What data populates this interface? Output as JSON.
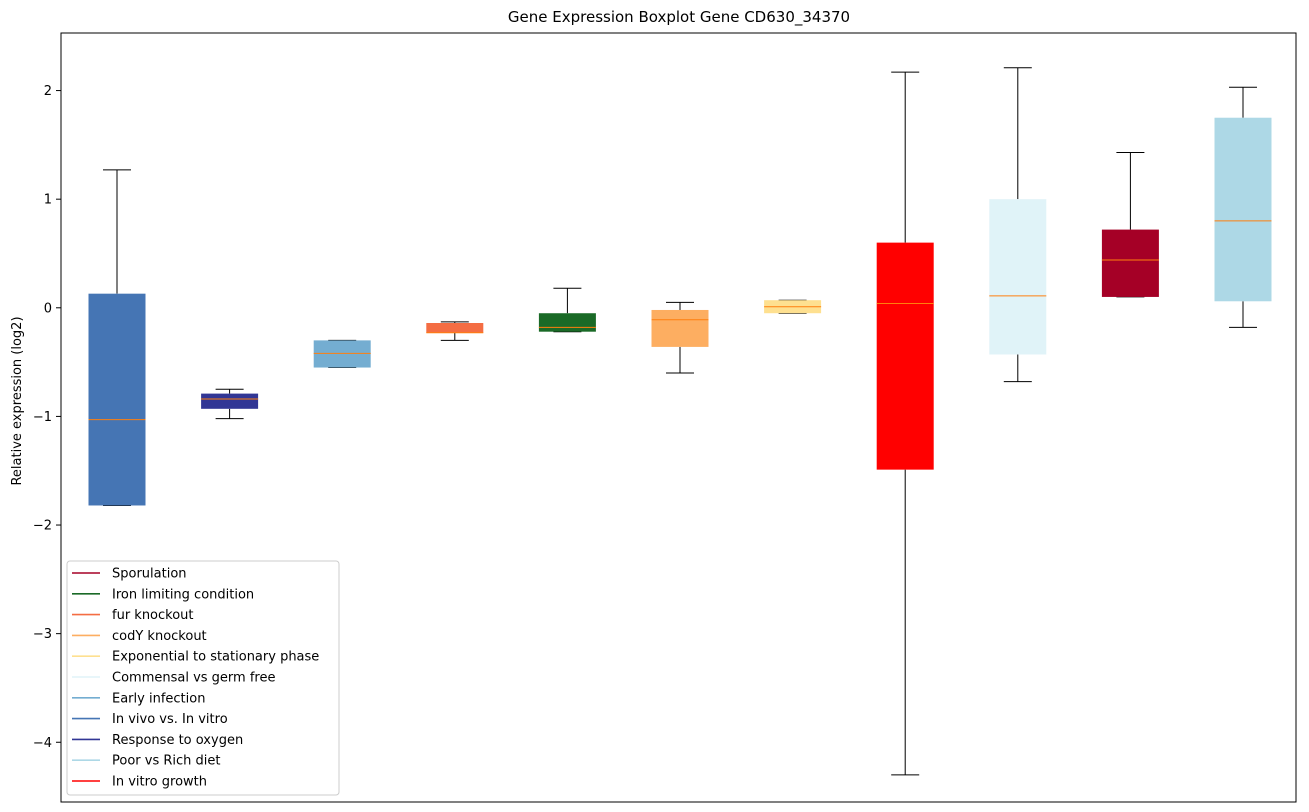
{
  "chart_data": {
    "type": "boxplot",
    "title": "Gene Expression Boxplot Gene CD630_34370",
    "xlabel": "",
    "ylabel": "Relative expression (log2)",
    "ylim": [
      -4.55,
      2.53
    ],
    "yticks": [
      -4,
      -3,
      -2,
      -1,
      0,
      1,
      2
    ],
    "ytick_labels": [
      "−4",
      "−3",
      "−2",
      "−1",
      "0",
      "1",
      "2"
    ],
    "median_color": "#ff7f0e",
    "whisker_color": "#000000",
    "legend_position": "lower-left",
    "boxes": [
      {
        "condition": "In vivo vs. In vitro",
        "color": "#4575b4",
        "whisker_low": -1.82,
        "q1": -1.82,
        "median": -1.03,
        "q3": 0.13,
        "whisker_high": 1.27
      },
      {
        "condition": "Response to oxygen",
        "color": "#313695",
        "whisker_low": -1.02,
        "q1": -0.93,
        "median": -0.84,
        "q3": -0.79,
        "whisker_high": -0.75
      },
      {
        "condition": "Early infection",
        "color": "#74add1",
        "whisker_low": -0.55,
        "q1": -0.55,
        "median": -0.42,
        "q3": -0.3,
        "whisker_high": -0.3
      },
      {
        "condition": "fur knockout",
        "color": "#f46d43",
        "whisker_low": -0.3,
        "q1": -0.23,
        "median": -0.23,
        "q3": -0.14,
        "whisker_high": -0.13
      },
      {
        "condition": "Iron limiting condition",
        "color": "#1a6a27",
        "whisker_low": -0.22,
        "q1": -0.22,
        "median": -0.18,
        "q3": -0.05,
        "whisker_high": 0.18
      },
      {
        "condition": "codY knockout",
        "color": "#fdae61",
        "whisker_low": -0.6,
        "q1": -0.36,
        "median": -0.11,
        "q3": -0.02,
        "whisker_high": 0.05
      },
      {
        "condition": "Exponential to stationary phase",
        "color": "#fee090",
        "whisker_low": -0.05,
        "q1": -0.05,
        "median": 0.01,
        "q3": 0.07,
        "whisker_high": 0.07
      },
      {
        "condition": "In vitro growth",
        "color": "#ff0000",
        "whisker_low": -4.3,
        "q1": -1.49,
        "median": 0.04,
        "q3": 0.6,
        "whisker_high": 2.17
      },
      {
        "condition": "Commensal vs germ free",
        "color": "#e0f3f8",
        "whisker_low": -0.68,
        "q1": -0.43,
        "median": 0.11,
        "q3": 1.0,
        "whisker_high": 2.21
      },
      {
        "condition": "Sporulation",
        "color": "#a50026",
        "whisker_low": 0.1,
        "q1": 0.1,
        "median": 0.44,
        "q3": 0.72,
        "whisker_high": 1.43
      },
      {
        "condition": "Poor vs Rich diet",
        "color": "#add8e6",
        "whisker_low": -0.18,
        "q1": 0.06,
        "median": 0.8,
        "q3": 1.75,
        "whisker_high": 2.03
      }
    ],
    "legend": [
      {
        "label": "Sporulation",
        "color": "#a50026"
      },
      {
        "label": "Iron limiting condition",
        "color": "#1a6a27"
      },
      {
        "label": "fur knockout",
        "color": "#f46d43"
      },
      {
        "label": "codY knockout",
        "color": "#fdae61"
      },
      {
        "label": "Exponential to stationary phase",
        "color": "#fee090"
      },
      {
        "label": "Commensal vs germ free",
        "color": "#e0f3f8"
      },
      {
        "label": "Early infection",
        "color": "#74add1"
      },
      {
        "label": "In vivo vs. In vitro",
        "color": "#4575b4"
      },
      {
        "label": "Response to oxygen",
        "color": "#313695"
      },
      {
        "label": "Poor vs Rich diet",
        "color": "#add8e6"
      },
      {
        "label": "In vitro growth",
        "color": "#ff0000"
      }
    ]
  }
}
